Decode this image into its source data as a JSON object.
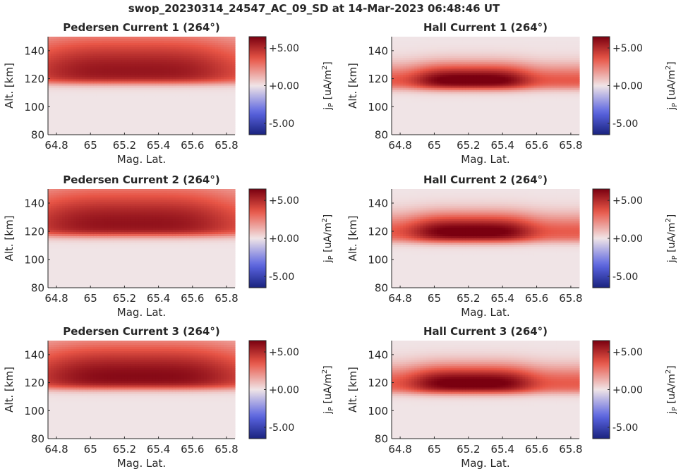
{
  "figure": {
    "suptitle": "swop_20230314_24547_AC_09_SD at 14-Mar-2023 06:48:46 UT"
  },
  "colors": {
    "cmap_negative": "#1a237e",
    "cmap_zero": "#f0e4e6",
    "cmap_positive": "#7a0010"
  },
  "chart_data": [
    {
      "type": "heatmap",
      "title": "Pedersen Current 1 (264°)",
      "xlabel": "Mag. Lat.",
      "ylabel": "Alt. [km]",
      "xlim": [
        64.75,
        65.85
      ],
      "ylim": [
        80,
        150
      ],
      "xticks": [
        64.8,
        65.0,
        65.2,
        65.4,
        65.6,
        65.8
      ],
      "xtick_labels": [
        "64.8",
        "65",
        "65.2",
        "65.4",
        "65.6",
        "65.8"
      ],
      "yticks": [
        80,
        100,
        120,
        140
      ],
      "yticks_labels": [
        "80",
        "100",
        "120",
        "140"
      ],
      "colorbar": {
        "label": "jP [uA/m2]",
        "label_main": "j",
        "label_sub": "P",
        "label_unit": " [uA/m",
        "label_sup": "2",
        "label_close": "]",
        "clim": [
          -6.5,
          6.5
        ],
        "ticks": [
          5,
          0,
          -5
        ],
        "tick_labels": [
          "+5.00",
          "+0.00",
          "-5.00"
        ]
      },
      "field": {
        "peak_alt_km": 124,
        "peak_value": 5.8,
        "lower_edge_km": 117,
        "upper_falloff_km": 30,
        "lat_center": 65.25,
        "lat_width": 0.55,
        "background": 0.6
      }
    },
    {
      "type": "heatmap",
      "title": "Hall Current 1 (264°)",
      "xlabel": "Mag. Lat.",
      "ylabel": "Alt. [km]",
      "xlim": [
        64.75,
        65.85
      ],
      "ylim": [
        80,
        150
      ],
      "xticks": [
        64.8,
        65.0,
        65.2,
        65.4,
        65.6,
        65.8
      ],
      "xtick_labels": [
        "64.8",
        "65",
        "65.2",
        "65.4",
        "65.6",
        "65.8"
      ],
      "yticks": [
        80,
        100,
        120,
        140
      ],
      "yticks_labels": [
        "80",
        "100",
        "120",
        "140"
      ],
      "colorbar": {
        "label": "jP [uA/m2]",
        "label_main": "j",
        "label_sub": "P",
        "label_unit": " [uA/m",
        "label_sup": "2",
        "label_close": "]",
        "clim": [
          -6.5,
          6.5
        ],
        "ticks": [
          5,
          0,
          -5
        ],
        "tick_labels": [
          "+5.00",
          "+0.00",
          "-5.00"
        ]
      },
      "field": {
        "peak_alt_km": 118,
        "peak_value": 7.2,
        "lower_edge_km": 113,
        "upper_falloff_km": 12,
        "lat_center": 65.22,
        "lat_width": 0.32,
        "background": 0.5
      }
    },
    {
      "type": "heatmap",
      "title": "Pedersen Current 2 (264°)",
      "xlabel": "Mag. Lat.",
      "ylabel": "Alt. [km]",
      "xlim": [
        64.75,
        65.85
      ],
      "ylim": [
        80,
        150
      ],
      "xticks": [
        64.8,
        65.0,
        65.2,
        65.4,
        65.6,
        65.8
      ],
      "xtick_labels": [
        "64.8",
        "65",
        "65.2",
        "65.4",
        "65.6",
        "65.8"
      ],
      "yticks": [
        80,
        100,
        120,
        140
      ],
      "yticks_labels": [
        "80",
        "100",
        "120",
        "140"
      ],
      "colorbar": {
        "label": "jP [uA/m2]",
        "label_main": "j",
        "label_sub": "P",
        "label_unit": " [uA/m",
        "label_sup": "2",
        "label_close": "]",
        "clim": [
          -6.5,
          6.5
        ],
        "ticks": [
          5,
          0,
          -5
        ],
        "tick_labels": [
          "+5.00",
          "+0.00",
          "-5.00"
        ]
      },
      "field": {
        "peak_alt_km": 124,
        "peak_value": 5.9,
        "lower_edge_km": 117,
        "upper_falloff_km": 30,
        "lat_center": 65.25,
        "lat_width": 0.55,
        "background": 0.6
      }
    },
    {
      "type": "heatmap",
      "title": "Hall Current 2 (264°)",
      "xlabel": "Mag. Lat.",
      "ylabel": "Alt. [km]",
      "xlim": [
        64.75,
        65.85
      ],
      "ylim": [
        80,
        150
      ],
      "xticks": [
        64.8,
        65.0,
        65.2,
        65.4,
        65.6,
        65.8
      ],
      "xtick_labels": [
        "64.8",
        "65",
        "65.2",
        "65.4",
        "65.6",
        "65.8"
      ],
      "yticks": [
        80,
        100,
        120,
        140
      ],
      "yticks_labels": [
        "80",
        "100",
        "120",
        "140"
      ],
      "colorbar": {
        "label": "jP [uA/m2]",
        "label_main": "j",
        "label_sub": "P",
        "label_unit": " [uA/m",
        "label_sup": "2",
        "label_close": "]",
        "clim": [
          -6.5,
          6.5
        ],
        "ticks": [
          5,
          0,
          -5
        ],
        "tick_labels": [
          "+5.00",
          "+0.00",
          "-5.00"
        ]
      },
      "field": {
        "peak_alt_km": 119,
        "peak_value": 7.0,
        "lower_edge_km": 113,
        "upper_falloff_km": 13,
        "lat_center": 65.22,
        "lat_width": 0.34,
        "background": 0.5
      }
    },
    {
      "type": "heatmap",
      "title": "Pedersen Current 3 (264°)",
      "xlabel": "Mag. Lat.",
      "ylabel": "Alt. [km]",
      "xlim": [
        64.75,
        65.85
      ],
      "ylim": [
        80,
        150
      ],
      "xticks": [
        64.8,
        65.0,
        65.2,
        65.4,
        65.6,
        65.8
      ],
      "xtick_labels": [
        "64.8",
        "65",
        "65.2",
        "65.4",
        "65.6",
        "65.8"
      ],
      "yticks": [
        80,
        100,
        120,
        140
      ],
      "yticks_labels": [
        "80",
        "100",
        "120",
        "140"
      ],
      "colorbar": {
        "label": "jP [uA/m2]",
        "label_main": "j",
        "label_sub": "P",
        "label_unit": " [uA/m",
        "label_sup": "2",
        "label_close": "]",
        "clim": [
          -6.5,
          6.5
        ],
        "ticks": [
          5,
          0,
          -5
        ],
        "tick_labels": [
          "+5.00",
          "+0.00",
          "-5.00"
        ]
      },
      "field": {
        "peak_alt_km": 123,
        "peak_value": 6.2,
        "lower_edge_km": 116,
        "upper_falloff_km": 28,
        "lat_center": 65.28,
        "lat_width": 0.55,
        "background": 0.6
      }
    },
    {
      "type": "heatmap",
      "title": "Hall Current 3 (264°)",
      "xlabel": "Mag. Lat.",
      "ylabel": "Alt. [km]",
      "xlim": [
        64.75,
        65.85
      ],
      "ylim": [
        80,
        150
      ],
      "xticks": [
        64.8,
        65.0,
        65.2,
        65.4,
        65.6,
        65.8
      ],
      "xtick_labels": [
        "64.8",
        "65",
        "65.2",
        "65.4",
        "65.6",
        "65.8"
      ],
      "yticks": [
        80,
        100,
        120,
        140
      ],
      "yticks_labels": [
        "80",
        "100",
        "120",
        "140"
      ],
      "colorbar": {
        "label": "jP [uA/m2]",
        "label_main": "j",
        "label_sub": "P",
        "label_unit": " [uA/m",
        "label_sup": "2",
        "label_close": "]",
        "clim": [
          -6.5,
          6.5
        ],
        "ticks": [
          5,
          0,
          -5
        ],
        "tick_labels": [
          "+5.00",
          "+0.00",
          "-5.00"
        ]
      },
      "field": {
        "peak_alt_km": 119,
        "peak_value": 7.0,
        "lower_edge_km": 113,
        "upper_falloff_km": 13,
        "lat_center": 65.22,
        "lat_width": 0.34,
        "background": 0.5
      }
    }
  ]
}
